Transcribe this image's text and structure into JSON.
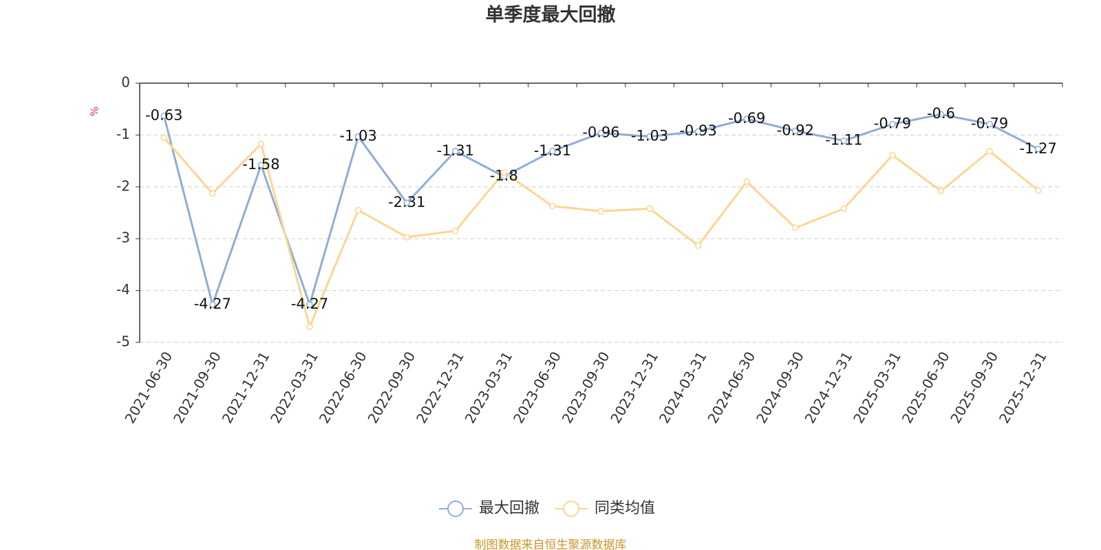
{
  "chart_data": {
    "type": "line",
    "title": "单季度最大回撤",
    "y_label": "%",
    "categories": [
      "2021-06-30",
      "2021-09-30",
      "2021-12-31",
      "2022-03-31",
      "2022-06-30",
      "2022-09-30",
      "2022-12-31",
      "2023-03-31",
      "2023-06-30",
      "2023-09-30",
      "2023-12-31",
      "2024-03-31",
      "2024-06-30",
      "2024-09-30",
      "2024-12-31",
      "2025-03-31",
      "2025-06-30",
      "2025-09-30",
      "2025-12-31"
    ],
    "series": [
      {
        "name": "最大回撤",
        "color": "#8eadd8",
        "labels": true,
        "values": [
          -0.63,
          -4.27,
          -1.58,
          -4.27,
          -1.03,
          -2.31,
          -1.31,
          -1.8,
          -1.31,
          -0.96,
          -1.03,
          -0.93,
          -0.69,
          -0.92,
          -1.11,
          -0.79,
          -0.6,
          -0.79,
          -1.27
        ]
      },
      {
        "name": "同类均值",
        "color": "#fcd68f",
        "labels": false,
        "values": [
          -1.05,
          -2.13,
          -1.17,
          -4.7,
          -2.45,
          -2.97,
          -2.85,
          -1.72,
          -2.37,
          -2.47,
          -2.42,
          -3.13,
          -1.9,
          -2.79,
          -2.42,
          -1.39,
          -2.08,
          -1.31,
          -2.07
        ]
      }
    ],
    "ylim": [
      -5,
      0
    ],
    "yticks": [
      0,
      -1,
      -2,
      -3,
      -4,
      -5
    ],
    "grid": true,
    "source": "制图数据来自恒生聚源数据库"
  }
}
